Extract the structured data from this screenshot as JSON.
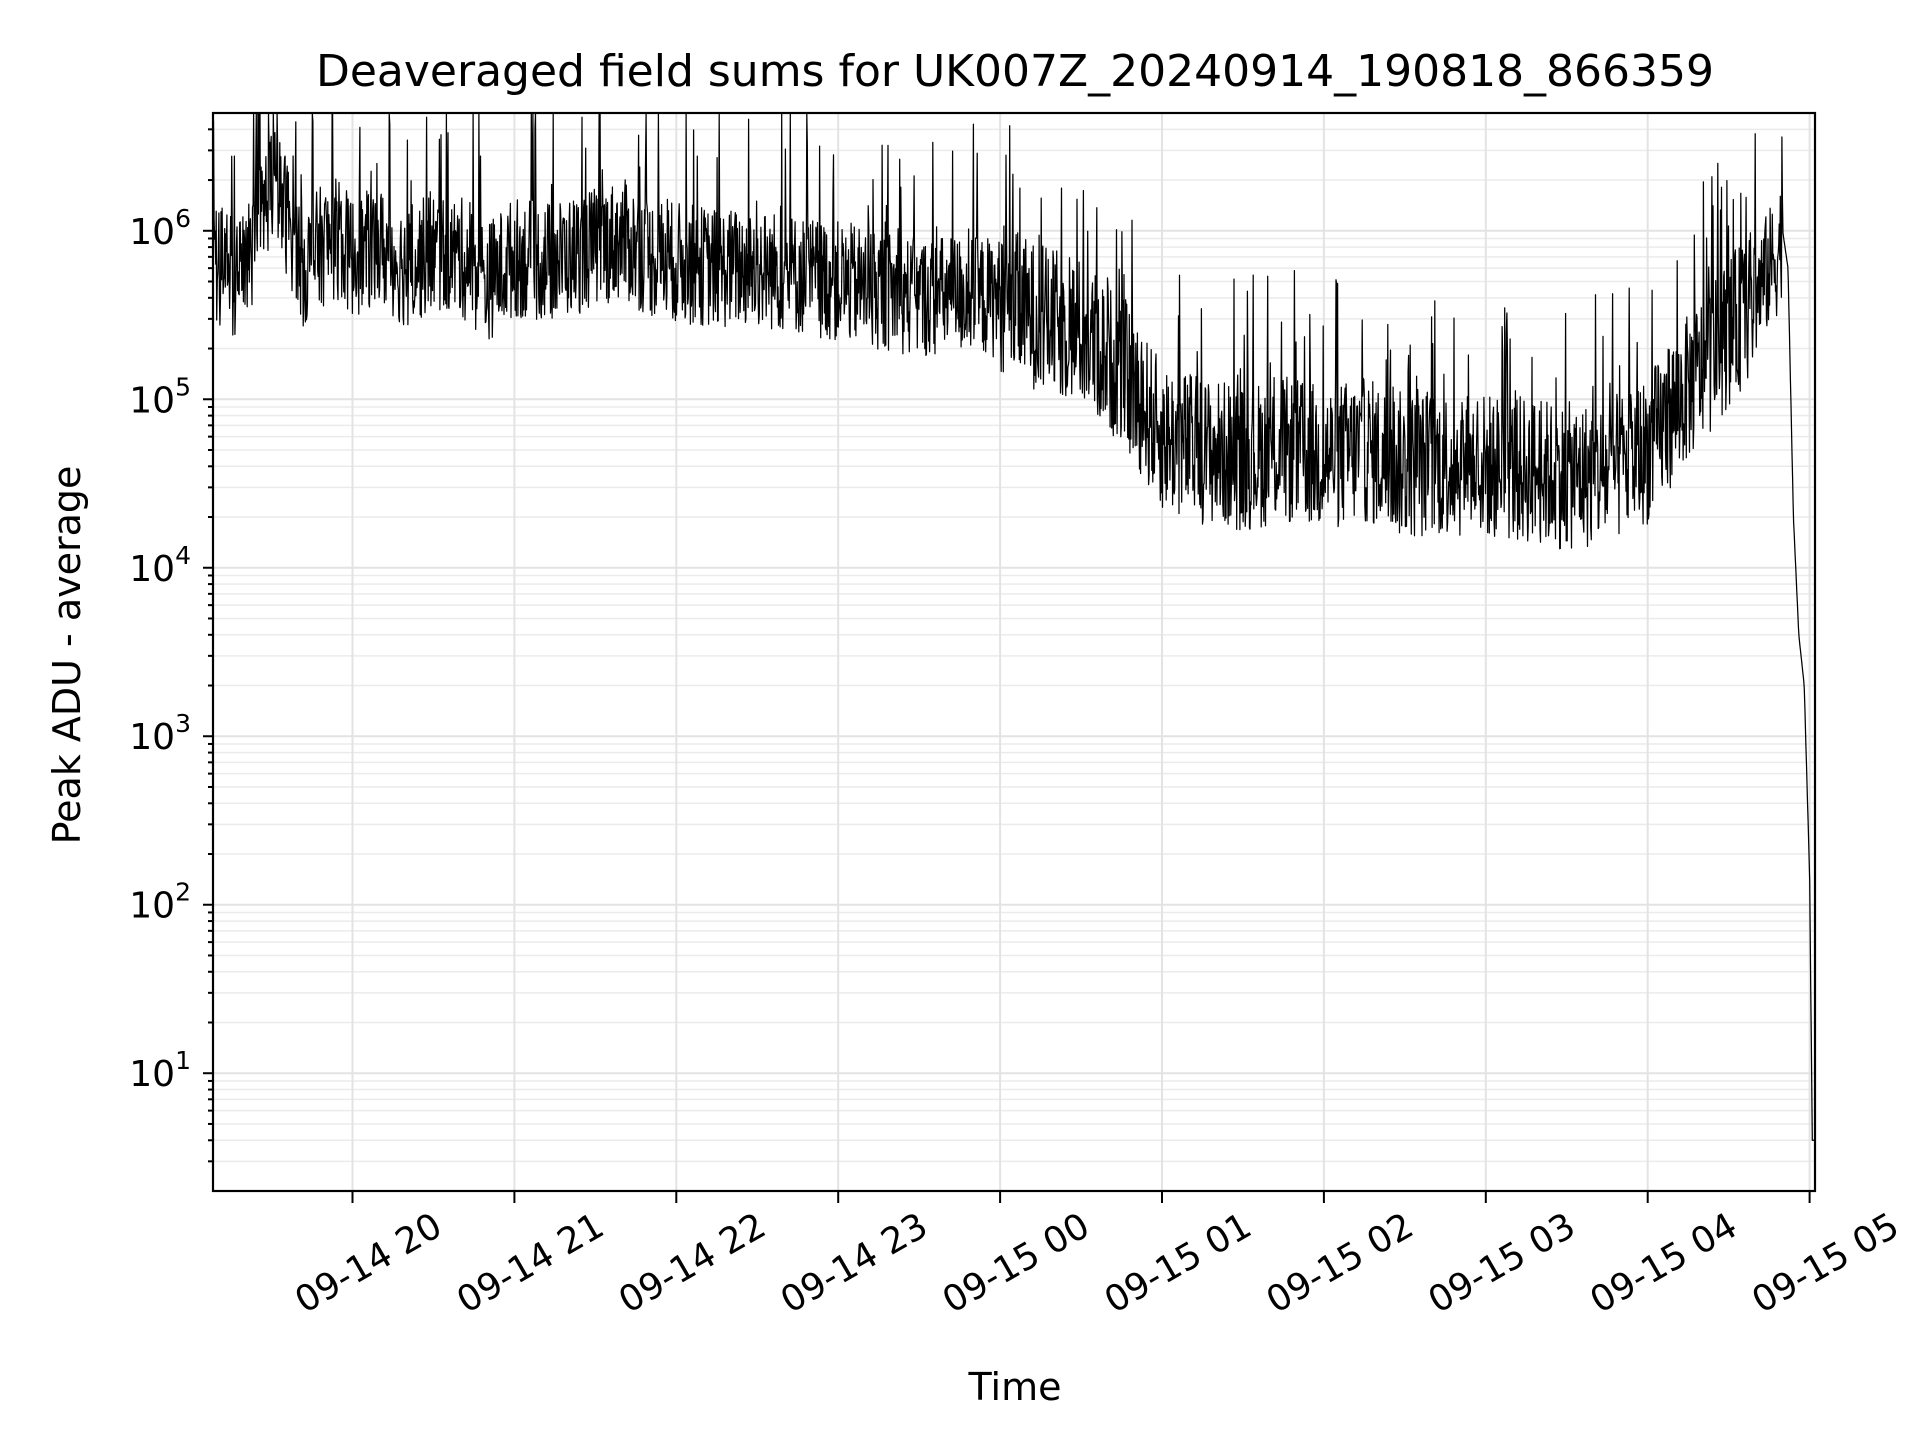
{
  "chart_data": {
    "type": "line",
    "title": "Deaveraged field sums for UK007Z_20240914_190818_866359",
    "xlabel": "Time",
    "ylabel": "Peak ADU - average",
    "xscale": "time",
    "yscale": "log",
    "xlim": [
      "2024-09-14T19:08:18",
      "2024-09-15T05:02:00"
    ],
    "ylim": [
      2,
      5000000
    ],
    "grid": true,
    "grid_minor_y": true,
    "line_color": "#000000",
    "x_ticks": [
      {
        "value": "2024-09-14T20:00",
        "label": "09-14 20"
      },
      {
        "value": "2024-09-14T21:00",
        "label": "09-14 21"
      },
      {
        "value": "2024-09-14T22:00",
        "label": "09-14 22"
      },
      {
        "value": "2024-09-14T23:00",
        "label": "09-14 23"
      },
      {
        "value": "2024-09-15T00:00",
        "label": "09-15 00"
      },
      {
        "value": "2024-09-15T01:00",
        "label": "09-15 01"
      },
      {
        "value": "2024-09-15T02:00",
        "label": "09-15 02"
      },
      {
        "value": "2024-09-15T03:00",
        "label": "09-15 03"
      },
      {
        "value": "2024-09-15T04:00",
        "label": "09-15 04"
      },
      {
        "value": "2024-09-15T05:00",
        "label": "09-15 05"
      }
    ],
    "y_ticks": [
      {
        "value": 10,
        "base": "10",
        "exp": "1"
      },
      {
        "value": 100,
        "base": "10",
        "exp": "2"
      },
      {
        "value": 1000,
        "base": "10",
        "exp": "3"
      },
      {
        "value": 10000,
        "base": "10",
        "exp": "4"
      },
      {
        "value": 100000,
        "base": "10",
        "exp": "5"
      },
      {
        "value": 1000000,
        "base": "10",
        "exp": "6"
      }
    ],
    "series": [
      {
        "x": [
          "2024-09-14T19:08",
          "2024-09-14T19:12",
          "2024-09-14T19:18",
          "2024-09-14T19:24",
          "2024-09-14T19:30",
          "2024-09-14T19:36",
          "2024-09-14T19:42",
          "2024-09-14T19:48",
          "2024-09-14T19:54",
          "2024-09-14T20:00",
          "2024-09-14T20:10",
          "2024-09-14T20:20",
          "2024-09-14T20:30",
          "2024-09-14T20:40",
          "2024-09-14T20:50",
          "2024-09-14T21:00",
          "2024-09-14T21:10",
          "2024-09-14T21:20",
          "2024-09-14T21:30",
          "2024-09-14T21:40",
          "2024-09-14T21:50",
          "2024-09-14T22:00",
          "2024-09-14T22:15",
          "2024-09-14T22:30",
          "2024-09-14T22:45",
          "2024-09-14T23:00",
          "2024-09-14T23:15",
          "2024-09-14T23:30",
          "2024-09-14T23:45",
          "2024-09-15T00:00",
          "2024-09-15T00:15",
          "2024-09-15T00:30",
          "2024-09-15T00:45",
          "2024-09-15T01:00",
          "2024-09-15T01:15",
          "2024-09-15T01:30",
          "2024-09-15T01:45",
          "2024-09-15T02:00",
          "2024-09-15T02:15",
          "2024-09-15T02:30",
          "2024-09-15T02:45",
          "2024-09-15T03:00",
          "2024-09-15T03:15",
          "2024-09-15T03:30",
          "2024-09-15T03:45",
          "2024-09-15T04:00",
          "2024-09-15T04:10",
          "2024-09-15T04:20",
          "2024-09-15T04:30",
          "2024-09-15T04:40",
          "2024-09-15T04:45",
          "2024-09-15T04:48",
          "2024-09-15T04:50",
          "2024-09-15T04:52",
          "2024-09-15T04:54",
          "2024-09-15T04:56",
          "2024-09-15T04:58",
          "2024-09-15T05:00",
          "2024-09-15T05:01"
        ],
        "y": [
          700000,
          600000,
          500000,
          900000,
          2000000,
          1200000,
          600000,
          800000,
          900000,
          700000,
          800000,
          600000,
          750000,
          700000,
          500000,
          700000,
          650000,
          700000,
          800000,
          900000,
          700000,
          650000,
          600000,
          600000,
          550000,
          500000,
          450000,
          400000,
          420000,
          400000,
          300000,
          250000,
          150000,
          60000,
          50000,
          45000,
          50000,
          45000,
          50000,
          40000,
          42000,
          40000,
          38000,
          35000,
          36000,
          50000,
          90000,
          150000,
          250000,
          400000,
          600000,
          700000,
          1000000,
          600000,
          20000,
          4000,
          2000,
          150,
          4
        ]
      }
    ]
  }
}
